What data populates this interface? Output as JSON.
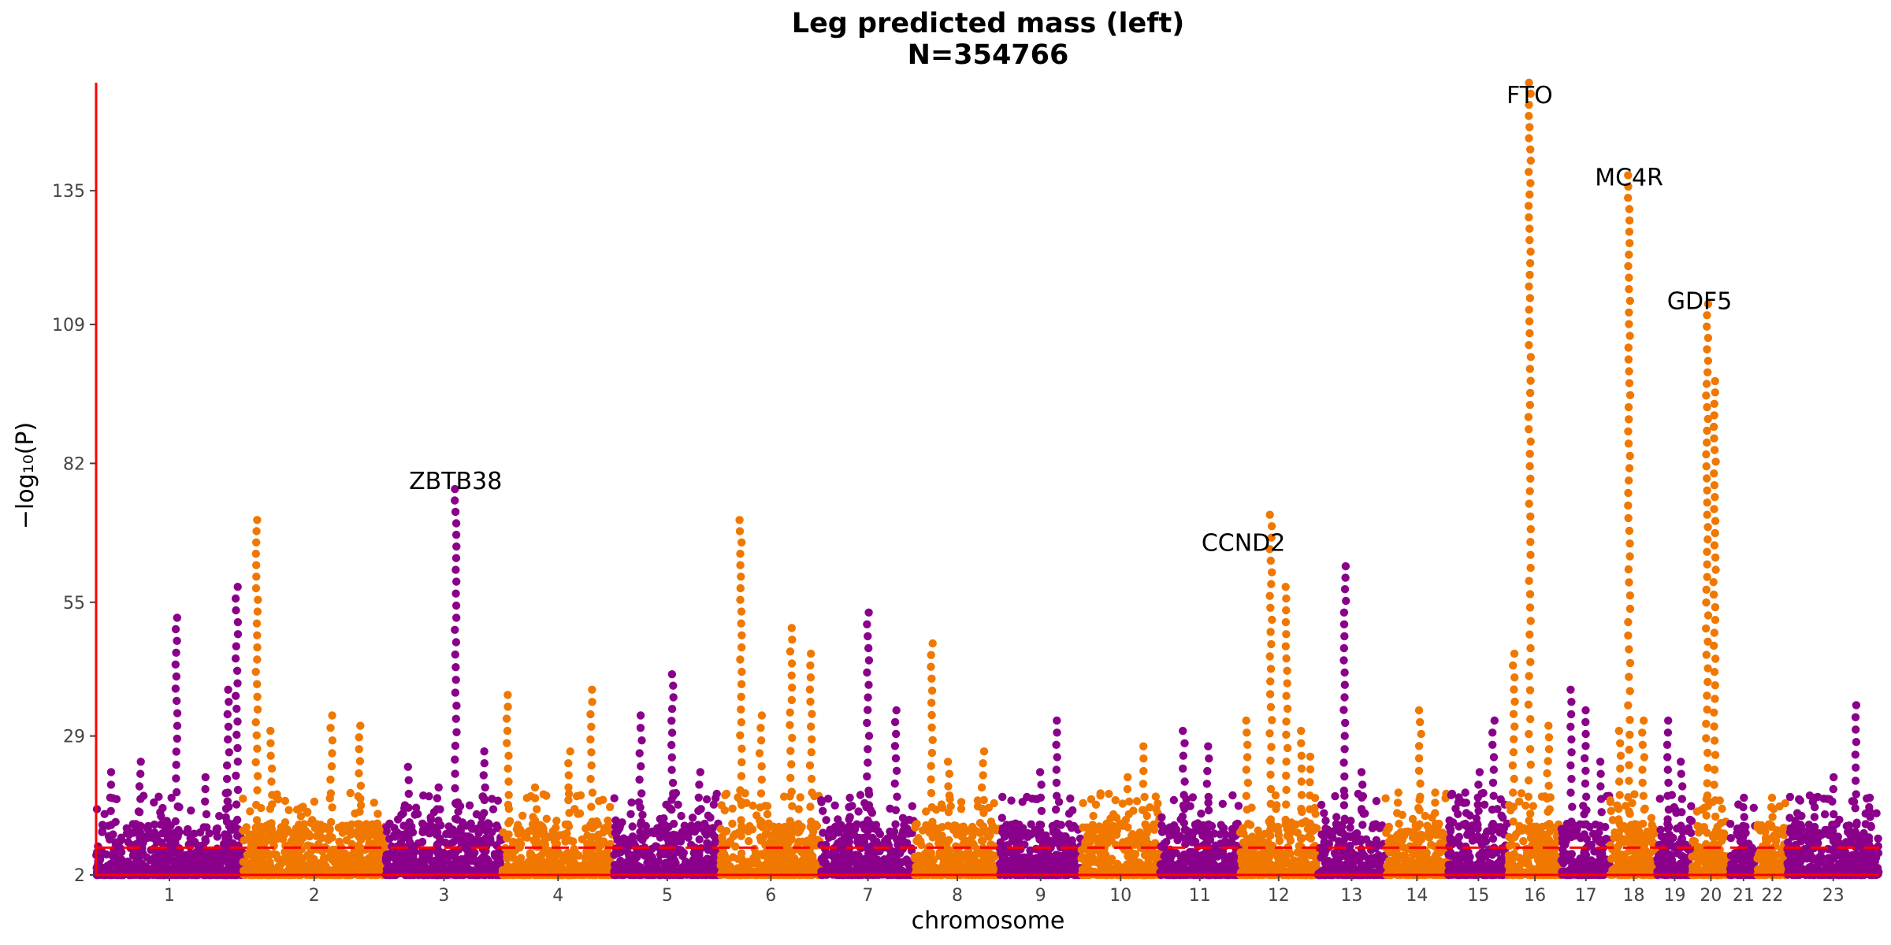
{
  "chart_data": {
    "type": "scatter",
    "subtype": "manhattan",
    "title": "Leg predicted mass (left)",
    "subtitle": "N=354766",
    "xlabel": "chromosome",
    "ylabel": "−log₁₀(P)",
    "ylim": [
      2,
      156
    ],
    "yticks": [
      2,
      29,
      55,
      82,
      109,
      135
    ],
    "significance_threshold": 7.3,
    "colors": {
      "odd": "#8B008B",
      "even": "#F07800",
      "threshold": "#FF0000",
      "axis": "#FF0000"
    },
    "chromosomes": [
      {
        "label": "1",
        "size": 249
      },
      {
        "label": "2",
        "size": 243
      },
      {
        "label": "3",
        "size": 198
      },
      {
        "label": "4",
        "size": 190
      },
      {
        "label": "5",
        "size": 181
      },
      {
        "label": "6",
        "size": 171
      },
      {
        "label": "7",
        "size": 159
      },
      {
        "label": "8",
        "size": 145
      },
      {
        "label": "9",
        "size": 138
      },
      {
        "label": "10",
        "size": 134
      },
      {
        "label": "11",
        "size": 135
      },
      {
        "label": "12",
        "size": 133
      },
      {
        "label": "13",
        "size": 115
      },
      {
        "label": "14",
        "size": 107
      },
      {
        "label": "15",
        "size": 102
      },
      {
        "label": "16",
        "size": 90
      },
      {
        "label": "17",
        "size": 83
      },
      {
        "label": "18",
        "size": 80
      },
      {
        "label": "19",
        "size": 59
      },
      {
        "label": "20",
        "size": 64
      },
      {
        "label": "21",
        "size": 47
      },
      {
        "label": "22",
        "size": 51
      },
      {
        "label": "23",
        "size": 156
      }
    ],
    "peaks": [
      [
        1,
        0.1,
        22
      ],
      [
        1,
        0.3,
        24
      ],
      [
        1,
        0.45,
        15
      ],
      [
        1,
        0.55,
        52
      ],
      [
        1,
        0.75,
        21
      ],
      [
        1,
        0.9,
        38
      ],
      [
        1,
        0.96,
        58
      ],
      [
        2,
        0.1,
        71
      ],
      [
        2,
        0.2,
        30
      ],
      [
        2,
        0.4,
        15
      ],
      [
        2,
        0.62,
        33
      ],
      [
        2,
        0.82,
        31
      ],
      [
        2,
        0.95,
        12
      ],
      [
        3,
        0.2,
        23
      ],
      [
        3,
        0.45,
        19
      ],
      [
        3,
        0.6,
        77
      ],
      [
        3,
        0.85,
        26
      ],
      [
        4,
        0.05,
        37
      ],
      [
        4,
        0.3,
        19
      ],
      [
        4,
        0.6,
        26
      ],
      [
        4,
        0.8,
        38
      ],
      [
        5,
        0.25,
        33
      ],
      [
        5,
        0.55,
        41
      ],
      [
        5,
        0.8,
        22
      ],
      [
        6,
        0.2,
        71
      ],
      [
        6,
        0.4,
        33
      ],
      [
        6,
        0.7,
        50
      ],
      [
        6,
        0.9,
        45
      ],
      [
        7,
        0.3,
        17
      ],
      [
        7,
        0.5,
        53
      ],
      [
        7,
        0.8,
        34
      ],
      [
        8,
        0.2,
        47
      ],
      [
        8,
        0.4,
        24
      ],
      [
        8,
        0.8,
        26
      ],
      [
        9,
        0.2,
        12
      ],
      [
        9,
        0.5,
        22
      ],
      [
        9,
        0.7,
        32
      ],
      [
        10,
        0.3,
        10
      ],
      [
        10,
        0.6,
        21
      ],
      [
        10,
        0.8,
        27
      ],
      [
        11,
        0.3,
        30
      ],
      [
        11,
        0.6,
        27
      ],
      [
        12,
        0.1,
        32
      ],
      [
        12,
        0.4,
        72
      ],
      [
        12,
        0.6,
        58
      ],
      [
        12,
        0.8,
        30
      ],
      [
        12,
        0.9,
        25
      ],
      [
        13,
        0.1,
        14
      ],
      [
        13,
        0.4,
        62
      ],
      [
        13,
        0.65,
        22
      ],
      [
        14,
        0.2,
        18
      ],
      [
        14,
        0.55,
        34
      ],
      [
        14,
        0.8,
        18
      ],
      [
        15,
        0.3,
        18
      ],
      [
        15,
        0.5,
        22
      ],
      [
        15,
        0.75,
        32
      ],
      [
        16,
        0.1,
        45
      ],
      [
        16,
        0.4,
        156
      ],
      [
        16,
        0.75,
        31
      ],
      [
        17,
        0.2,
        38
      ],
      [
        17,
        0.5,
        34
      ],
      [
        17,
        0.8,
        24
      ],
      [
        18,
        0.2,
        30
      ],
      [
        18,
        0.4,
        138
      ],
      [
        18,
        0.7,
        32
      ],
      [
        19,
        0.3,
        32
      ],
      [
        19,
        0.7,
        24
      ],
      [
        20,
        0.4,
        113
      ],
      [
        20,
        0.6,
        98
      ],
      [
        21,
        0.5,
        17
      ],
      [
        22,
        0.5,
        17
      ],
      [
        23,
        0.1,
        14
      ],
      [
        23,
        0.3,
        17
      ],
      [
        23,
        0.5,
        21
      ],
      [
        23,
        0.75,
        35
      ],
      [
        23,
        0.9,
        17
      ]
    ],
    "annotations": [
      {
        "text": "ZBTB38",
        "chr": 3,
        "frac": 0.6,
        "y": 77
      },
      {
        "text": "CCND2",
        "chr": 12,
        "frac": 0.05,
        "y": 65
      },
      {
        "text": "FTO",
        "chr": 16,
        "frac": 0.4,
        "y": 152
      },
      {
        "text": "MC4R",
        "chr": 18,
        "frac": 0.4,
        "y": 136
      },
      {
        "text": "GDF5",
        "chr": 20,
        "frac": 0.2,
        "y": 112
      }
    ]
  }
}
